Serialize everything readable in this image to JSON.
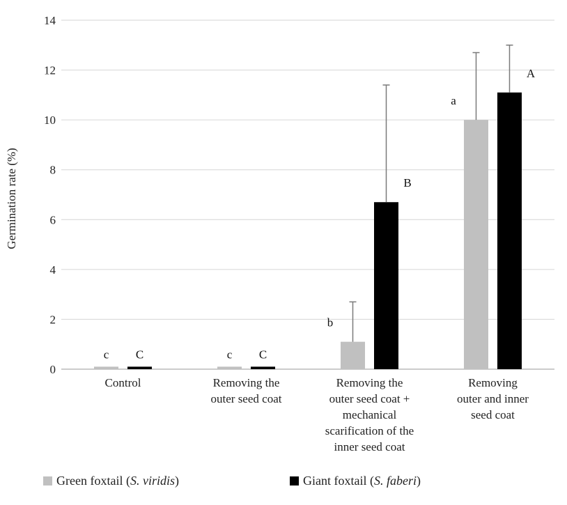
{
  "chart_data": {
    "type": "bar",
    "ylabel": "Germination rate (%)",
    "ylim": [
      0,
      14
    ],
    "yticks": [
      0,
      2,
      4,
      6,
      8,
      10,
      12,
      14
    ],
    "grid": true,
    "legend_position": "bottom",
    "categories": [
      [
        "Control"
      ],
      [
        "Removing the",
        "outer seed coat"
      ],
      [
        "Removing the",
        "outer seed coat +",
        "mechanical",
        "scarification of the",
        "inner seed coat"
      ],
      [
        "Removing",
        "outer and inner",
        "seed coat"
      ]
    ],
    "series": [
      {
        "name_prefix": "Green foxtail (",
        "name_italic": "S. viridis",
        "name_suffix": ")",
        "color": "#c0c0c0",
        "values": [
          0.1,
          0.1,
          1.1,
          10.0
        ],
        "error": [
          0.0,
          0.0,
          1.6,
          2.7
        ],
        "labels": [
          "c",
          "c",
          "b",
          "a"
        ]
      },
      {
        "name_prefix": "Giant foxtail (",
        "name_italic": "S. faberi",
        "name_suffix": ")",
        "color": "#000000",
        "values": [
          0.1,
          0.1,
          6.7,
          11.1
        ],
        "error": [
          0.0,
          0.0,
          4.7,
          1.9
        ],
        "labels": [
          "C",
          "C",
          "B",
          "A"
        ]
      }
    ]
  }
}
